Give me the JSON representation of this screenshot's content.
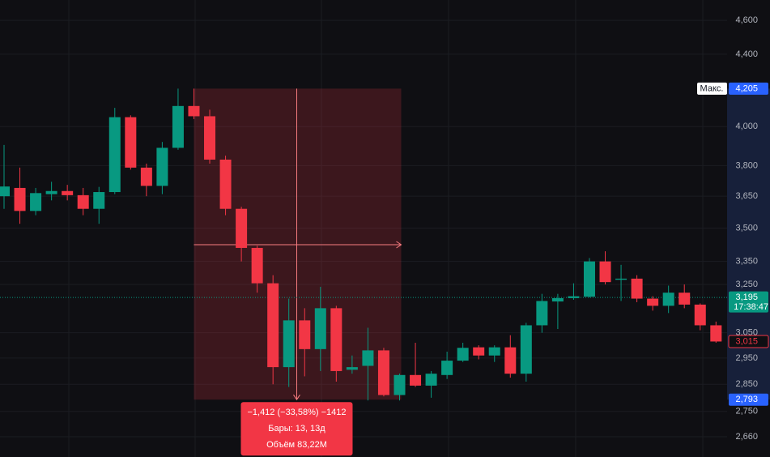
{
  "chart_data": {
    "type": "candlestick",
    "log_scale": true,
    "grid": true,
    "up_color": "#089981",
    "down_color": "#f23645",
    "ylim": [
      2590,
      4725
    ],
    "yticks": [
      {
        "value": 4600,
        "label": "4,600"
      },
      {
        "value": 4400,
        "label": "4,400"
      },
      {
        "value": 4000,
        "label": "4,000"
      },
      {
        "value": 3800,
        "label": "3,800"
      },
      {
        "value": 3650,
        "label": "3,650"
      },
      {
        "value": 3500,
        "label": "3,500"
      },
      {
        "value": 3350,
        "label": "3,350"
      },
      {
        "value": 3250,
        "label": "3,250"
      },
      {
        "value": 3050,
        "label": "3,050"
      },
      {
        "value": 2950,
        "label": "2,950"
      },
      {
        "value": 2850,
        "label": "2,850"
      },
      {
        "value": 2750,
        "label": "2,750"
      },
      {
        "value": 2660,
        "label": "2,660"
      }
    ],
    "series": [
      {
        "open": [
          3650,
          3690,
          3580,
          3660,
          3675,
          3655,
          3590,
          3670,
          4050,
          3790,
          3700,
          3890,
          4110,
          4055,
          3830,
          3590,
          3410,
          3255,
          2915,
          3100,
          2985,
          3150,
          2905,
          2920,
          2980,
          2810,
          2885,
          2845,
          2885,
          2940,
          2992,
          2960,
          2992,
          2890,
          3080,
          3178,
          3192,
          3198,
          3350,
          3270,
          3275,
          3190,
          3160,
          3215,
          3165,
          3080
        ],
        "high": [
          3905,
          3790,
          3690,
          3720,
          3705,
          3690,
          3695,
          4100,
          4060,
          3810,
          3920,
          4205,
          4205,
          4090,
          3850,
          3600,
          3420,
          3290,
          3190,
          3150,
          3240,
          3160,
          2960,
          3070,
          2990,
          2890,
          3010,
          2900,
          2975,
          3010,
          3000,
          3000,
          3040,
          3090,
          3210,
          3210,
          3255,
          3365,
          3395,
          3335,
          3290,
          3200,
          3245,
          3250,
          3170,
          3095
        ],
        "low": [
          3590,
          3520,
          3560,
          3630,
          3630,
          3560,
          3520,
          3660,
          3780,
          3650,
          3660,
          3880,
          4040,
          3810,
          3560,
          3350,
          3215,
          2850,
          2840,
          2880,
          2900,
          2860,
          2890,
          2790,
          2805,
          2790,
          2840,
          2800,
          2870,
          2935,
          2945,
          2935,
          2875,
          2860,
          3050,
          3065,
          3185,
          3195,
          3250,
          3180,
          3175,
          3140,
          3130,
          3150,
          3060,
          3010
        ],
        "close": [
          3697,
          3580,
          3665,
          3675,
          3655,
          3590,
          3670,
          4050,
          3790,
          3700,
          3890,
          4110,
          4055,
          3830,
          3590,
          3410,
          3255,
          2915,
          3100,
          2985,
          3150,
          2900,
          2915,
          2980,
          2810,
          2885,
          2845,
          2890,
          2940,
          2990,
          2960,
          2992,
          2890,
          3080,
          3180,
          3192,
          3200,
          3350,
          3260,
          3275,
          3190,
          3160,
          3215,
          3165,
          3080,
          3015
        ]
      }
    ],
    "price_labels": [
      {
        "value": 4205,
        "label": "4,205",
        "tag": "Макс."
      },
      {
        "value": 3195,
        "label": "3,195",
        "time": "17:38:47"
      },
      {
        "value": 3015,
        "label": "3,015"
      },
      {
        "value": 2793,
        "label": "2,793"
      }
    ],
    "measure": {
      "top": 4205,
      "bottom": 2793,
      "lines": [
        "−1,412 (−33,58%) −1412",
        "Бары: 13, 13д",
        "Объём 83,22M"
      ]
    }
  }
}
